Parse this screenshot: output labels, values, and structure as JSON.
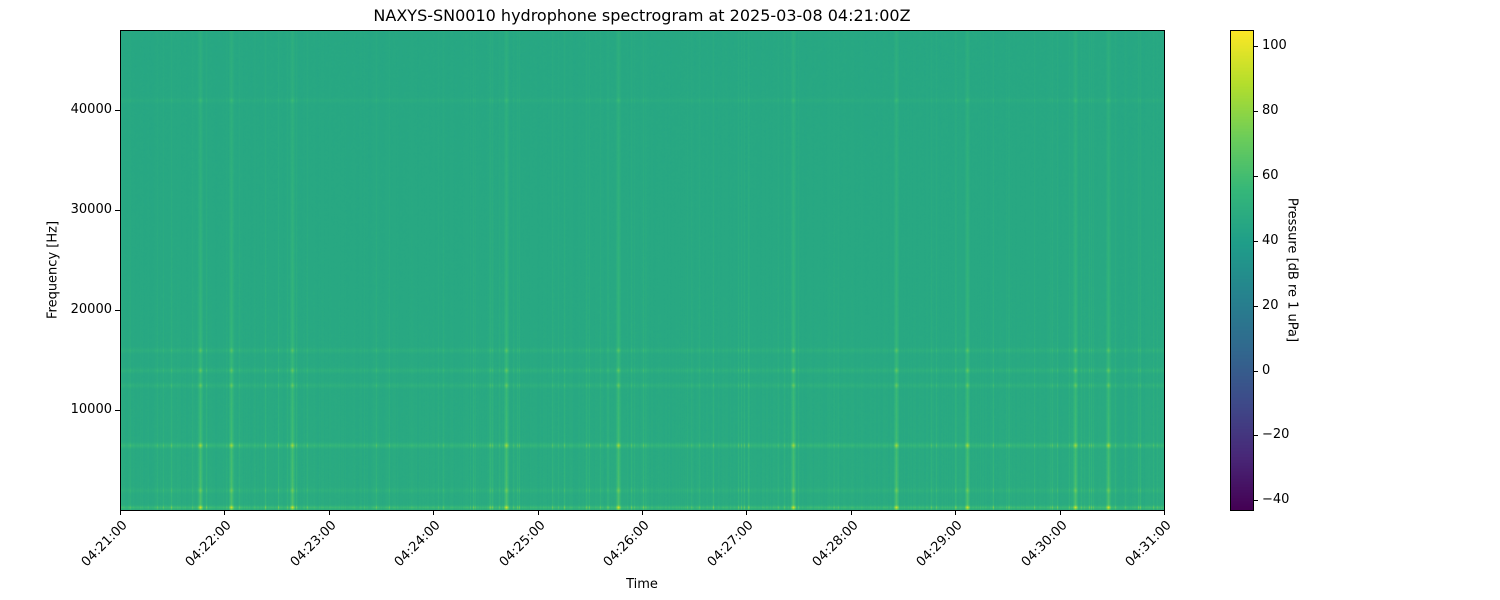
{
  "chart_data": {
    "type": "heatmap",
    "title": "NAXYS-SN0010 hydrophone spectrogram at 2025-03-08 04:21:00Z",
    "xlabel": "Time",
    "ylabel": "Frequency [Hz]",
    "x_ticks": [
      "04:21:00",
      "04:22:00",
      "04:23:00",
      "04:24:00",
      "04:25:00",
      "04:26:00",
      "04:27:00",
      "04:28:00",
      "04:29:00",
      "04:30:00",
      "04:31:00"
    ],
    "xlim": [
      "04:21:00",
      "04:31:00"
    ],
    "y_ticks": [
      10000,
      20000,
      30000,
      40000
    ],
    "ylim": [
      0,
      48000
    ],
    "colormap": "viridis",
    "colorbar": {
      "label": "Pressure [dB re 1 uPa]",
      "range": [
        -43,
        105
      ],
      "ticks": [
        -40,
        -20,
        0,
        20,
        40,
        60,
        80,
        100
      ]
    },
    "background_level_db": 45,
    "tonal_bands_hz": [
      {
        "freq": 300,
        "level_db": 68
      },
      {
        "freq": 2000,
        "level_db": 52
      },
      {
        "freq": 6500,
        "level_db": 62
      },
      {
        "freq": 12500,
        "level_db": 54
      },
      {
        "freq": 14000,
        "level_db": 54
      },
      {
        "freq": 16000,
        "level_db": 53
      },
      {
        "freq": 41000,
        "level_db": 50
      }
    ],
    "strong_events": [
      "04:21:46",
      "04:22:04",
      "04:22:39",
      "04:24:42",
      "04:25:46",
      "04:27:27",
      "04:28:26",
      "04:29:07",
      "04:30:09",
      "04:30:28"
    ]
  }
}
